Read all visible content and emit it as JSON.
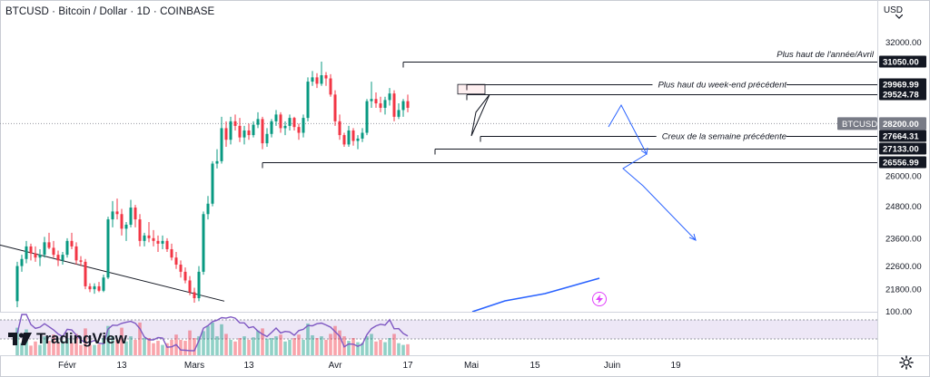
{
  "header": {
    "title": "BTCUSD · Bitcoin / Dollar · 1D · COINBASE",
    "currency": "USD"
  },
  "branding": {
    "logo_text": "TradingView"
  },
  "chart_data": {
    "type": "candlestick",
    "symbol": "BTCUSD",
    "interval": "1D",
    "exchange": "COINBASE",
    "y_scale": "log",
    "ylim": [
      21400,
      32700
    ],
    "y_ticks": [
      "32000.00",
      "26000.00",
      "24800.00",
      "23600.00",
      "22600.00",
      "21800.00"
    ],
    "x_tick_labels": [
      "Févr",
      "13",
      "Mars",
      "13",
      "Avr",
      "17",
      "Mai",
      "15",
      "Juin",
      "19"
    ],
    "x_tick_index": [
      11,
      23,
      39,
      51,
      70,
      86,
      100,
      114,
      131,
      145
    ],
    "last_price": {
      "label": "BTCUSD",
      "value": "28200.00",
      "index": 107
    },
    "levels": [
      {
        "price": 31050,
        "label": "31050.00",
        "text": "Plus haut de l'année/Avril",
        "from": 85
      },
      {
        "price": 29969.99,
        "label": "29969.99",
        "text": "Plus haut du week-end précédent",
        "from": 99
      },
      {
        "price": 29524.78,
        "label": "29524.78",
        "text": "",
        "from": 99
      },
      {
        "price": 27664.31,
        "label": "27664.31",
        "text": "Creux de la semaine précédente",
        "from": 102
      },
      {
        "price": 27133.0,
        "label": "27133.00",
        "text": "",
        "from": 92
      },
      {
        "price": 26556.99,
        "label": "26556.99",
        "text": "",
        "from": 54
      }
    ],
    "candles": [
      [
        21400,
        22750,
        21200,
        22600
      ],
      [
        22600,
        23000,
        22400,
        22850
      ],
      [
        22850,
        23500,
        22700,
        23300
      ],
      [
        23300,
        23400,
        22800,
        23050
      ],
      [
        23050,
        23300,
        22750,
        22900
      ],
      [
        22900,
        23200,
        22600,
        23000
      ],
      [
        23000,
        23650,
        22900,
        23450
      ],
      [
        23450,
        23800,
        23200,
        23250
      ],
      [
        23250,
        23500,
        22900,
        23000
      ],
      [
        23000,
        23150,
        22600,
        22800
      ],
      [
        22800,
        23100,
        22650,
        23000
      ],
      [
        23000,
        23600,
        22900,
        23500
      ],
      [
        23500,
        23800,
        23200,
        23300
      ],
      [
        23300,
        23450,
        22650,
        22800
      ],
      [
        22800,
        22950,
        22600,
        22750
      ],
      [
        22750,
        22850,
        21800,
        21900
      ],
      [
        21900,
        22000,
        21700,
        21800
      ],
      [
        21800,
        22000,
        21650,
        21900
      ],
      [
        21900,
        22050,
        21700,
        21750
      ],
      [
        21750,
        22300,
        21700,
        22200
      ],
      [
        22200,
        24400,
        22150,
        24300
      ],
      [
        24300,
        25000,
        24000,
        24600
      ],
      [
        24600,
        25100,
        24300,
        24500
      ],
      [
        24500,
        24700,
        23700,
        23950
      ],
      [
        23950,
        24200,
        23500,
        24100
      ],
      [
        24100,
        25050,
        24000,
        24750
      ],
      [
        24750,
        24850,
        24000,
        24300
      ],
      [
        24300,
        24500,
        23300,
        23500
      ],
      [
        23500,
        23800,
        23300,
        23700
      ],
      [
        23700,
        24200,
        23450,
        23600
      ],
      [
        23600,
        23900,
        23300,
        23500
      ],
      [
        23500,
        23700,
        23100,
        23400
      ],
      [
        23400,
        23700,
        23200,
        23500
      ],
      [
        23500,
        23600,
        23100,
        23200
      ],
      [
        23200,
        23400,
        22800,
        22900
      ],
      [
        22900,
        23100,
        22500,
        22650
      ],
      [
        22650,
        22800,
        22200,
        22400
      ],
      [
        22400,
        22550,
        22000,
        22100
      ],
      [
        22100,
        22250,
        21600,
        21700
      ],
      [
        21700,
        21850,
        21350,
        21500
      ],
      [
        21500,
        22600,
        21400,
        22400
      ],
      [
        22400,
        24600,
        22300,
        24500
      ],
      [
        24500,
        25200,
        24300,
        24900
      ],
      [
        24900,
        26600,
        24800,
        26500
      ],
      [
        26500,
        27100,
        26300,
        26600
      ],
      [
        26600,
        28500,
        26500,
        28000
      ],
      [
        28000,
        28300,
        27200,
        27500
      ],
      [
        27500,
        28500,
        27300,
        28300
      ],
      [
        28300,
        28600,
        27900,
        28100
      ],
      [
        28100,
        28450,
        27400,
        27600
      ],
      [
        27600,
        28100,
        27300,
        27900
      ],
      [
        27900,
        28200,
        27500,
        27700
      ],
      [
        27700,
        28300,
        27600,
        28150
      ],
      [
        28150,
        28700,
        28000,
        28400
      ],
      [
        28400,
        28500,
        27100,
        27350
      ],
      [
        27350,
        28000,
        27200,
        27750
      ],
      [
        27750,
        28400,
        27600,
        28300
      ],
      [
        28300,
        28800,
        28100,
        28600
      ],
      [
        28600,
        28700,
        27800,
        28000
      ],
      [
        28000,
        28300,
        27700,
        28100
      ],
      [
        28100,
        28600,
        27900,
        28450
      ],
      [
        28450,
        28500,
        27900,
        28050
      ],
      [
        28050,
        28200,
        27500,
        27800
      ],
      [
        27800,
        28600,
        27600,
        28450
      ],
      [
        28450,
        30300,
        28300,
        30100
      ],
      [
        30100,
        30600,
        29900,
        30300
      ],
      [
        30300,
        30500,
        29800,
        30000
      ],
      [
        30000,
        31050,
        29900,
        30400
      ],
      [
        30400,
        30550,
        29900,
        30250
      ],
      [
        30250,
        30450,
        29400,
        29500
      ],
      [
        29500,
        29700,
        28100,
        28300
      ],
      [
        28300,
        28600,
        27500,
        27700
      ],
      [
        27700,
        27800,
        27200,
        27300
      ],
      [
        27300,
        28100,
        27200,
        27900
      ],
      [
        27900,
        28000,
        27250,
        27450
      ],
      [
        27450,
        27700,
        27100,
        27550
      ],
      [
        27550,
        28000,
        27400,
        27800
      ],
      [
        27800,
        29300,
        27700,
        29200
      ],
      [
        29200,
        30100,
        28900,
        29300
      ],
      [
        29300,
        29600,
        28900,
        29100
      ],
      [
        29100,
        29400,
        28700,
        28900
      ],
      [
        28900,
        29400,
        28600,
        29250
      ],
      [
        29250,
        29800,
        29000,
        29550
      ],
      [
        29550,
        29700,
        28300,
        28500
      ],
      [
        28500,
        29100,
        28400,
        28800
      ],
      [
        28800,
        29300,
        28500,
        29200
      ],
      [
        29200,
        29500,
        28700,
        28900
      ]
    ],
    "candle_x": [
      19,
      24,
      29,
      34,
      39,
      44,
      49,
      54,
      59,
      64,
      69,
      74,
      79,
      84,
      89,
      94,
      99,
      104,
      109,
      114,
      119,
      124,
      129,
      134,
      139,
      144,
      149,
      154,
      159,
      164,
      169,
      174,
      179,
      184,
      189,
      194,
      199,
      204,
      209,
      214,
      219,
      224,
      229,
      234,
      239,
      244,
      249,
      254,
      259,
      264,
      269,
      274,
      279,
      284,
      289,
      294,
      299,
      304,
      309,
      314,
      319,
      324,
      329,
      334,
      339,
      344,
      349,
      354,
      359,
      364,
      369,
      374,
      379,
      384,
      389,
      394,
      399,
      404,
      409,
      414,
      419,
      424,
      429,
      434,
      439,
      444,
      449
    ],
    "volume_pct": [
      0.8,
      0.35,
      0.75,
      0.28,
      0.4,
      0.3,
      0.55,
      0.42,
      0.6,
      0.38,
      0.42,
      0.5,
      0.36,
      0.62,
      0.3,
      0.78,
      0.3,
      0.3,
      0.32,
      0.5,
      0.85,
      0.55,
      0.45,
      0.8,
      0.4,
      0.55,
      0.45,
      0.95,
      0.5,
      0.5,
      0.35,
      0.42,
      0.3,
      0.35,
      0.45,
      0.6,
      0.45,
      0.42,
      0.72,
      0.5,
      0.55,
      0.7,
      0.85,
      0.95,
      0.55,
      0.9,
      0.62,
      0.45,
      0.4,
      0.5,
      0.55,
      0.45,
      0.52,
      0.72,
      0.78,
      0.48,
      0.5,
      0.55,
      0.6,
      0.4,
      0.45,
      0.5,
      0.6,
      0.45,
      0.92,
      0.58,
      0.5,
      0.55,
      0.45,
      0.62,
      0.85,
      0.72,
      0.55,
      0.42,
      0.5,
      0.38,
      0.36,
      0.55,
      0.62,
      0.4,
      0.45,
      0.38,
      0.5,
      0.62,
      0.35,
      0.3,
      0.32
    ],
    "rsi_range": [
      0,
      100
    ],
    "rsi_tick": "100.00",
    "colors": {
      "up": "#089981",
      "down": "#f23645",
      "line": "#131722",
      "projection": "#2962ff",
      "rsi": "#7e57c2",
      "rsi_band": "#ede7f6"
    }
  }
}
